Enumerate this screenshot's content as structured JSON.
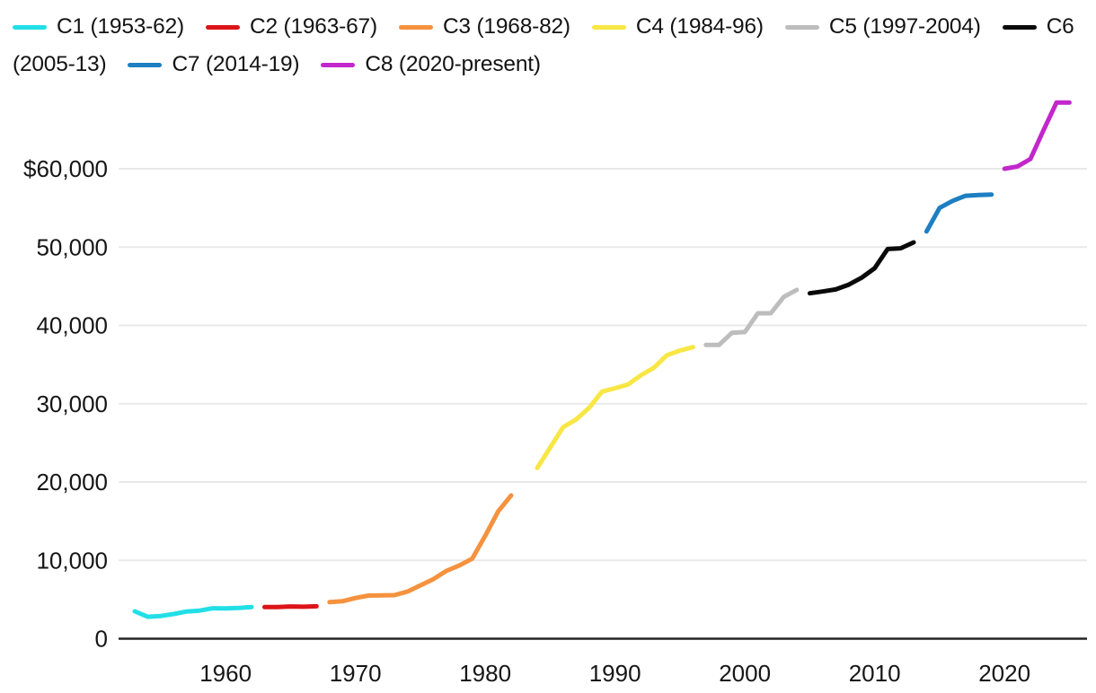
{
  "legend": {
    "lines": [
      {
        "segments": [
          {
            "swatch": "c1",
            "text": "C1 (1953-62)"
          },
          {
            "swatch": "c2",
            "text": "C2 (1963-67)"
          },
          {
            "swatch": "c3",
            "text": "C3 (1968-82)"
          },
          {
            "swatch": "c4",
            "text": "C4 (1984-96)"
          },
          {
            "swatch": "c5",
            "text": "C5 (1997-2004)"
          },
          {
            "swatch": "c6",
            "text": "C6"
          }
        ]
      },
      {
        "segments": [
          {
            "swatch": null,
            "text": "(2005-13)"
          },
          {
            "swatch": "c7",
            "text": "C7 (2014-19)"
          },
          {
            "swatch": "c8",
            "text": "C8 (2020-present)"
          }
        ]
      }
    ]
  },
  "colors": {
    "c1": "#22dfe6",
    "c2": "#dc1418",
    "c3": "#f5923e",
    "c4": "#f8e645",
    "c5": "#bdbdbd",
    "c6": "#0a0a0a",
    "c7": "#1d7fc2",
    "c8": "#c127cb",
    "gridline": "#e9e9e9",
    "axis": "#242424",
    "tick_text": "#161616"
  },
  "chart_data": {
    "type": "line",
    "title": "",
    "xlabel": "",
    "ylabel": "",
    "unit": "USD",
    "grid": "horizontal",
    "legend_position": "top",
    "x_axis": {
      "ticks": [
        1960,
        1970,
        1980,
        1990,
        2000,
        2010,
        2020
      ],
      "range": [
        1952.7,
        2026.3
      ]
    },
    "y_axis": {
      "range": [
        0,
        70000
      ],
      "ticks": [
        {
          "value": 60000,
          "label": "$60,000"
        },
        {
          "value": 50000,
          "label": "50,000"
        },
        {
          "value": 40000,
          "label": "40,000"
        },
        {
          "value": 30000,
          "label": "30,000"
        },
        {
          "value": 20000,
          "label": "20,000"
        },
        {
          "value": 10000,
          "label": "10,000"
        },
        {
          "value": 0,
          "label": "0"
        }
      ]
    },
    "series": [
      {
        "name": "C1 (1953-62)",
        "color_key": "c1",
        "start_year": 1953,
        "values": [
          3500,
          2800,
          2900,
          3150,
          3470,
          3590,
          3880,
          3870,
          3930,
          4040
        ]
      },
      {
        "name": "C2 (1963-67)",
        "color_key": "c2",
        "start_year": 1963,
        "values": [
          4040,
          4040,
          4110,
          4080,
          4140
        ]
      },
      {
        "name": "C3 (1968-82)",
        "color_key": "c3",
        "start_year": 1968,
        "values": [
          4660,
          4780,
          5190,
          5500,
          5530,
          5560,
          6000,
          6810,
          7600,
          8650,
          9350,
          10220,
          13140,
          16260,
          18290
        ]
      },
      {
        "name": "C4 (1984-96)",
        "color_key": "c4",
        "start_year": 1984,
        "values": [
          21800,
          24400,
          27000,
          28000,
          29480,
          31550,
          31980,
          32460,
          33640,
          34600,
          36190,
          36790,
          37230
        ]
      },
      {
        "name": "C5 (1997-2004)",
        "color_key": "c5",
        "start_year": 1997,
        "values": [
          37500,
          37500,
          39050,
          39150,
          41550,
          41550,
          43650,
          44540
        ]
      },
      {
        "name": "C6 (2005-13)",
        "color_key": "c6",
        "start_year": 2005,
        "values": [
          44100,
          44330,
          44600,
          45200,
          46100,
          47300,
          49750,
          49850,
          50600
        ]
      },
      {
        "name": "C7 (2014-19)",
        "color_key": "c7",
        "start_year": 2014,
        "values": [
          52000,
          55000,
          55900,
          56550,
          56650,
          56700
        ]
      },
      {
        "name": "C8 (2020-present)",
        "color_key": "c8",
        "start_year": 2020,
        "values": [
          60000,
          60300,
          61250,
          64900,
          68450,
          68450
        ]
      }
    ]
  }
}
